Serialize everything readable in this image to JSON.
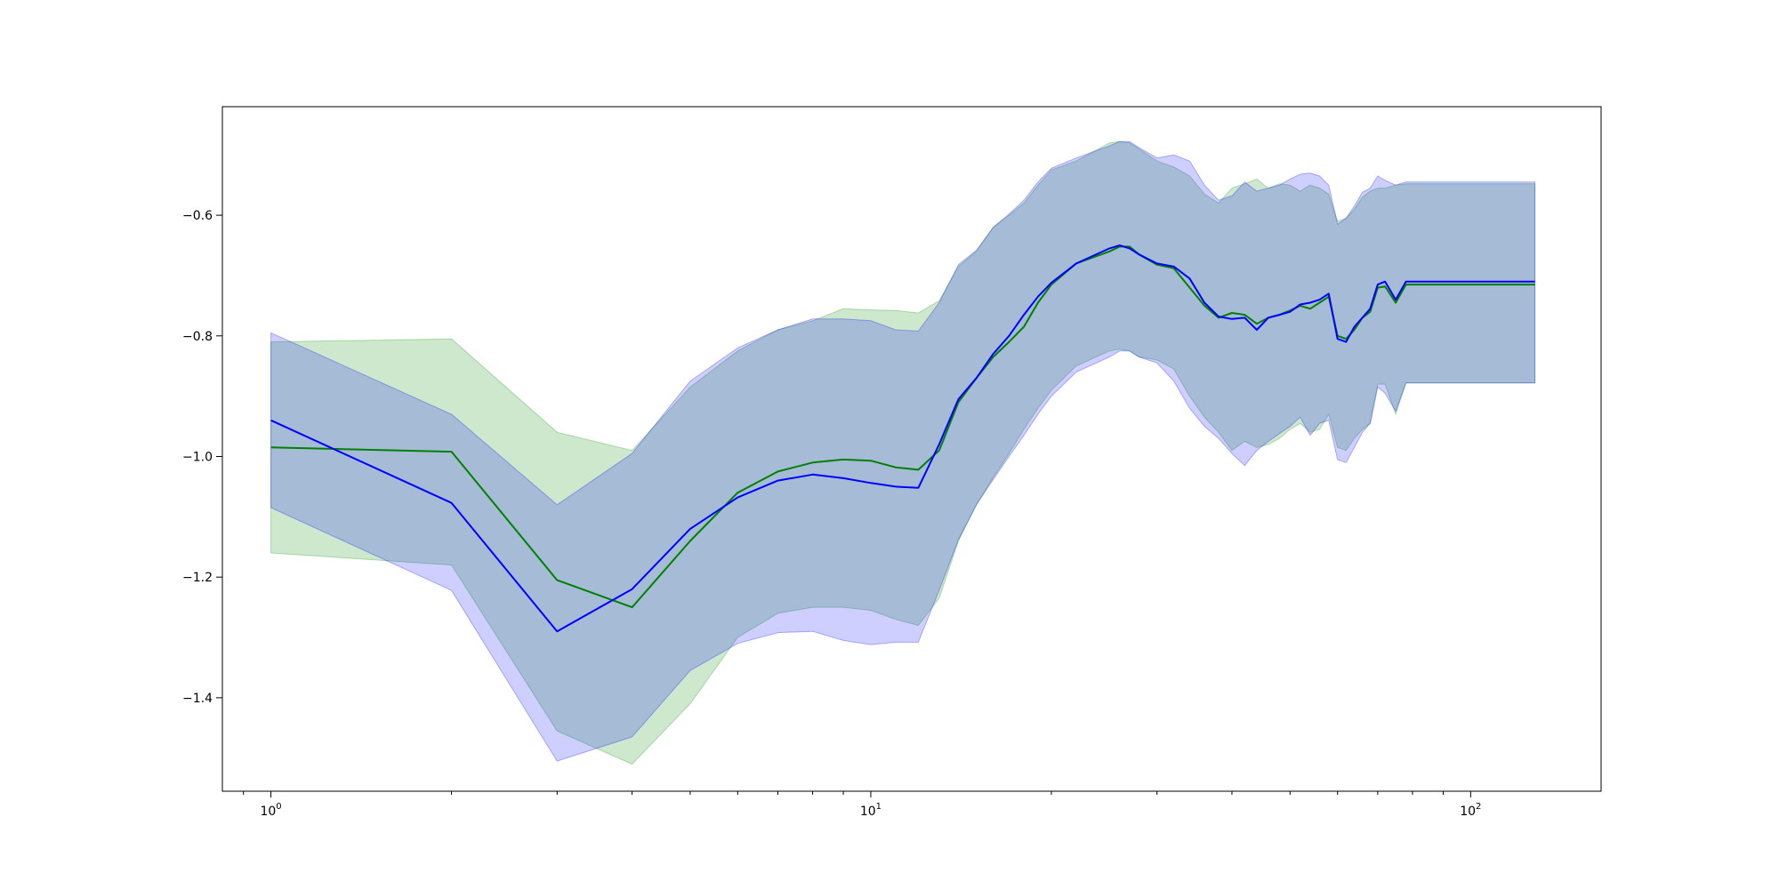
{
  "chart_data": {
    "type": "line",
    "title": "",
    "xlabel": "",
    "ylabel": "",
    "x_scale": "log",
    "xlim": [
      0.83,
      165
    ],
    "ylim": [
      -1.555,
      -0.42
    ],
    "grid": false,
    "x_ticks": [
      {
        "value": 1,
        "base": "10",
        "exp": "0"
      },
      {
        "value": 10,
        "base": "10",
        "exp": "1"
      },
      {
        "value": 100,
        "base": "10",
        "exp": "2"
      }
    ],
    "y_ticks": [
      {
        "value": -0.6,
        "label": "−0.6"
      },
      {
        "value": -0.8,
        "label": "−0.8"
      },
      {
        "value": -1.0,
        "label": "−1.0"
      },
      {
        "value": -1.2,
        "label": "−1.2"
      },
      {
        "value": -1.4,
        "label": "−1.4"
      }
    ],
    "series": [
      {
        "color": "#008000",
        "band_color": "#2ca02c",
        "band_opacity": 0.24,
        "x": [
          1,
          2,
          3,
          4,
          5,
          6,
          7,
          8,
          9,
          10,
          11,
          12,
          13,
          14,
          15,
          16,
          17,
          18,
          19,
          20,
          22,
          25,
          26,
          27,
          28,
          30,
          32,
          34,
          36,
          38,
          40,
          42,
          44,
          46,
          48,
          50,
          52,
          54,
          56,
          58,
          60,
          62,
          64,
          66,
          68,
          70,
          72,
          75,
          78,
          80,
          90,
          100,
          110,
          128
        ],
        "y": [
          -0.985,
          -0.992,
          -1.205,
          -1.25,
          -1.14,
          -1.06,
          -1.025,
          -1.01,
          -1.005,
          -1.007,
          -1.018,
          -1.022,
          -0.99,
          -0.91,
          -0.87,
          -0.835,
          -0.81,
          -0.785,
          -0.745,
          -0.715,
          -0.68,
          -0.66,
          -0.652,
          -0.652,
          -0.665,
          -0.682,
          -0.688,
          -0.72,
          -0.75,
          -0.77,
          -0.762,
          -0.765,
          -0.78,
          -0.77,
          -0.765,
          -0.758,
          -0.75,
          -0.755,
          -0.745,
          -0.735,
          -0.8,
          -0.805,
          -0.79,
          -0.77,
          -0.76,
          -0.72,
          -0.718,
          -0.745,
          -0.715,
          -0.715,
          -0.715,
          -0.715,
          -0.715,
          -0.715
        ],
        "upper": [
          -0.81,
          -0.805,
          -0.96,
          -0.99,
          -0.885,
          -0.825,
          -0.79,
          -0.775,
          -0.755,
          -0.757,
          -0.758,
          -0.762,
          -0.742,
          -0.685,
          -0.66,
          -0.62,
          -0.6,
          -0.58,
          -0.55,
          -0.525,
          -0.51,
          -0.48,
          -0.478,
          -0.48,
          -0.49,
          -0.51,
          -0.52,
          -0.535,
          -0.565,
          -0.58,
          -0.555,
          -0.548,
          -0.54,
          -0.555,
          -0.548,
          -0.55,
          -0.56,
          -0.55,
          -0.555,
          -0.565,
          -0.61,
          -0.605,
          -0.59,
          -0.57,
          -0.56,
          -0.555,
          -0.555,
          -0.55,
          -0.548,
          -0.548,
          -0.548,
          -0.548,
          -0.548,
          -0.548
        ],
        "lower": [
          -1.16,
          -1.18,
          -1.455,
          -1.51,
          -1.41,
          -1.3,
          -1.26,
          -1.25,
          -1.25,
          -1.255,
          -1.27,
          -1.28,
          -1.235,
          -1.14,
          -1.08,
          -1.035,
          -0.995,
          -0.955,
          -0.92,
          -0.89,
          -0.85,
          -0.825,
          -0.822,
          -0.825,
          -0.835,
          -0.84,
          -0.855,
          -0.9,
          -0.935,
          -0.96,
          -0.99,
          -0.975,
          -0.985,
          -0.98,
          -0.97,
          -0.955,
          -0.945,
          -0.96,
          -0.955,
          -0.93,
          -0.985,
          -0.99,
          -0.97,
          -0.955,
          -0.945,
          -0.88,
          -0.88,
          -0.93,
          -0.878,
          -0.878,
          -0.878,
          -0.878,
          -0.878,
          -0.878
        ]
      },
      {
        "color": "#0000ff",
        "band_color": "#0000ff",
        "band_opacity": 0.19,
        "x": [
          1,
          2,
          3,
          4,
          5,
          6,
          7,
          8,
          9,
          10,
          11,
          12,
          13,
          14,
          15,
          16,
          17,
          18,
          19,
          20,
          22,
          25,
          26,
          27,
          28,
          30,
          32,
          34,
          36,
          38,
          40,
          42,
          44,
          46,
          48,
          50,
          52,
          54,
          56,
          58,
          60,
          62,
          64,
          66,
          68,
          70,
          72,
          75,
          78,
          80,
          90,
          100,
          110,
          128
        ],
        "y": [
          -0.94,
          -1.077,
          -1.29,
          -1.22,
          -1.12,
          -1.068,
          -1.04,
          -1.03,
          -1.036,
          -1.044,
          -1.05,
          -1.052,
          -0.98,
          -0.905,
          -0.87,
          -0.83,
          -0.8,
          -0.765,
          -0.735,
          -0.712,
          -0.68,
          -0.655,
          -0.65,
          -0.655,
          -0.665,
          -0.68,
          -0.685,
          -0.705,
          -0.745,
          -0.768,
          -0.772,
          -0.77,
          -0.79,
          -0.77,
          -0.765,
          -0.76,
          -0.748,
          -0.745,
          -0.74,
          -0.73,
          -0.805,
          -0.81,
          -0.785,
          -0.77,
          -0.755,
          -0.715,
          -0.71,
          -0.74,
          -0.71,
          -0.71,
          -0.71,
          -0.71,
          -0.71,
          -0.71
        ],
        "upper": [
          -0.795,
          -0.93,
          -1.08,
          -0.995,
          -0.875,
          -0.82,
          -0.79,
          -0.772,
          -0.772,
          -0.775,
          -0.79,
          -0.792,
          -0.745,
          -0.682,
          -0.658,
          -0.62,
          -0.598,
          -0.575,
          -0.545,
          -0.522,
          -0.505,
          -0.485,
          -0.478,
          -0.478,
          -0.488,
          -0.505,
          -0.5,
          -0.51,
          -0.55,
          -0.575,
          -0.568,
          -0.545,
          -0.56,
          -0.555,
          -0.55,
          -0.54,
          -0.532,
          -0.53,
          -0.535,
          -0.55,
          -0.615,
          -0.605,
          -0.585,
          -0.562,
          -0.555,
          -0.535,
          -0.542,
          -0.55,
          -0.545,
          -0.545,
          -0.545,
          -0.545,
          -0.545,
          -0.545
        ],
        "lower": [
          -1.085,
          -1.222,
          -1.505,
          -1.465,
          -1.355,
          -1.31,
          -1.292,
          -1.29,
          -1.305,
          -1.312,
          -1.308,
          -1.308,
          -1.222,
          -1.138,
          -1.08,
          -1.038,
          -1.0,
          -0.965,
          -0.93,
          -0.9,
          -0.86,
          -0.835,
          -0.825,
          -0.825,
          -0.835,
          -0.845,
          -0.875,
          -0.92,
          -0.95,
          -0.97,
          -0.995,
          -1.015,
          -0.99,
          -0.975,
          -0.962,
          -0.95,
          -0.935,
          -0.965,
          -0.945,
          -0.94,
          -1.005,
          -1.01,
          -0.985,
          -0.96,
          -0.945,
          -0.885,
          -0.895,
          -0.925,
          -0.878,
          -0.878,
          -0.878,
          -0.878,
          -0.878,
          -0.878
        ]
      }
    ]
  }
}
